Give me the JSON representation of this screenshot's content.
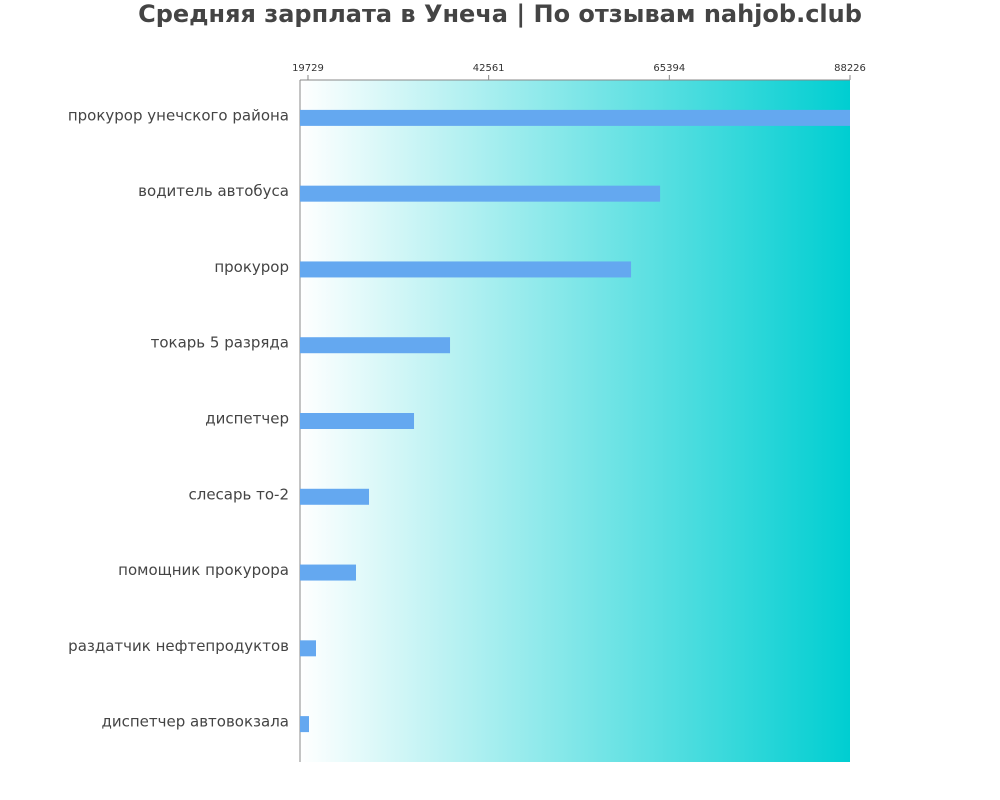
{
  "chart_data": {
    "type": "barh",
    "title": "Средняя зарплата в Унеча | По отзывам nahjob.club",
    "categories": [
      "прокурор унечского района",
      "водитель автобуса",
      "прокурор",
      "токарь 5 разряда",
      "диспетчер",
      "слесарь то-2",
      "помощник прокурора",
      "раздатчик нефтепродуктов",
      "диспетчер автовокзала"
    ],
    "values": [
      88226,
      64224,
      60558,
      37680,
      33130,
      27442,
      25798,
      20742,
      19858
    ],
    "color": "#64a8f0",
    "xlim": [
      18720,
      88226
    ],
    "xticks": [
      19729,
      42561,
      65394,
      88226
    ]
  }
}
